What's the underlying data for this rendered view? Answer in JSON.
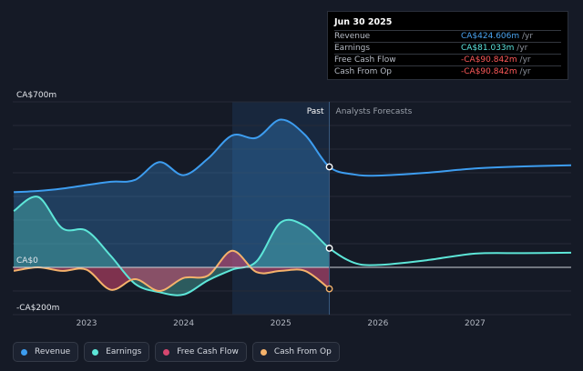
{
  "tooltip": {
    "date": "Jun 30 2025",
    "rows": [
      {
        "label": "Revenue",
        "value": "CA$424.606m",
        "unit": " /yr",
        "color": "#4aa3f0"
      },
      {
        "label": "Earnings",
        "value": "CA$81.033m",
        "unit": " /yr",
        "color": "#5ce4de"
      },
      {
        "label": "Free Cash Flow",
        "value": "-CA$90.842m",
        "unit": " /yr",
        "color": "#ff5a5a"
      },
      {
        "label": "Cash From Op",
        "value": "-CA$90.842m",
        "unit": " /yr",
        "color": "#ff5a5a"
      }
    ]
  },
  "colors": {
    "revenue": "#3d9df0",
    "earnings": "#5de6d8",
    "fcf": "#d6476f",
    "cfo": "#f5b26b",
    "zero_line": "#d0d4da",
    "grid": "#262b38",
    "past_shade": "#1b3350"
  },
  "legend": [
    {
      "label": "Revenue",
      "color": "#3d9df0"
    },
    {
      "label": "Earnings",
      "color": "#5de6d8"
    },
    {
      "label": "Free Cash Flow",
      "color": "#d6476f"
    },
    {
      "label": "Cash From Op",
      "color": "#f5b26b"
    }
  ],
  "chart_data": {
    "type": "area",
    "title": "",
    "ylim": [
      -200,
      700
    ],
    "y_tick_labels": [
      "CA$700m",
      "CA$0",
      "-CA$200m"
    ],
    "y_ticks": [
      700,
      0,
      -200
    ],
    "x_ticks": [
      2023,
      2024,
      2025,
      2026,
      2027
    ],
    "x_range": [
      2022.24,
      2027.99
    ],
    "past_label": "Past",
    "forecast_label": "Analysts Forecasts",
    "past_end": 2025.5,
    "highlight_start": 2024.5,
    "series": [
      {
        "name": "Revenue",
        "x": [
          2022.25,
          2022.5,
          2022.75,
          2023.0,
          2023.25,
          2023.5,
          2023.75,
          2024.0,
          2024.25,
          2024.5,
          2024.75,
          2025.0,
          2025.25,
          2025.5,
          2025.75,
          2026.0,
          2026.5,
          2027.0,
          2027.5,
          2027.99
        ],
        "y": [
          318,
          323,
          333,
          348,
          362,
          370,
          445,
          390,
          460,
          558,
          548,
          625,
          560,
          425,
          393,
          388,
          400,
          418,
          427,
          432
        ]
      },
      {
        "name": "Earnings",
        "x": [
          2022.25,
          2022.5,
          2022.75,
          2023.0,
          2023.25,
          2023.5,
          2023.75,
          2024.0,
          2024.25,
          2024.5,
          2024.75,
          2025.0,
          2025.25,
          2025.5,
          2025.75,
          2026.0,
          2026.5,
          2027.0,
          2027.5,
          2027.99
        ],
        "y": [
          238,
          298,
          165,
          155,
          48,
          -70,
          -105,
          -115,
          -55,
          -10,
          25,
          190,
          175,
          81,
          20,
          10,
          30,
          58,
          60,
          62
        ]
      },
      {
        "name": "Free Cash Flow",
        "x": [
          2022.25,
          2022.5,
          2022.75,
          2023.0,
          2023.25,
          2023.5,
          2023.75,
          2024.0,
          2024.25,
          2024.5,
          2024.75,
          2025.0,
          2025.25,
          2025.5
        ],
        "y": [
          -15,
          0,
          -15,
          -10,
          -95,
          -50,
          -100,
          -45,
          -35,
          70,
          -20,
          -15,
          -15,
          -90.842
        ]
      },
      {
        "name": "Cash From Op",
        "x": [
          2022.25,
          2022.5,
          2022.75,
          2023.0,
          2023.25,
          2023.5,
          2023.75,
          2024.0,
          2024.25,
          2024.5,
          2024.75,
          2025.0,
          2025.25,
          2025.5
        ],
        "y": [
          -15,
          0,
          -15,
          -10,
          -95,
          -50,
          -100,
          -45,
          -35,
          70,
          -20,
          -15,
          -15,
          -90.842
        ]
      }
    ]
  }
}
